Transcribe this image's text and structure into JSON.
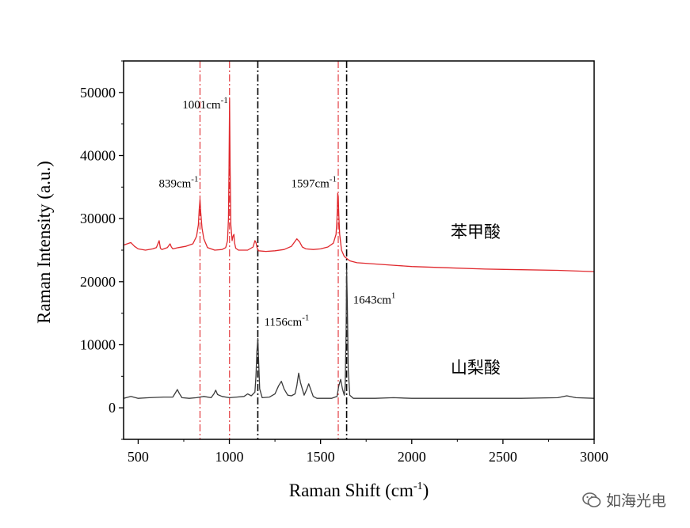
{
  "chart_data": {
    "type": "line",
    "xlabel_main": "Raman Shift (cm",
    "xlabel_sup": "-1",
    "xlabel_end": ")",
    "ylabel": "Raman Intensity (a.u.)",
    "xlim": [
      420,
      3000
    ],
    "ylim": [
      -5000,
      55000
    ],
    "xticks": [
      500,
      1000,
      1500,
      2000,
      2500,
      3000
    ],
    "yticks": [
      0,
      10000,
      20000,
      30000,
      40000,
      50000
    ],
    "series": [
      {
        "name": "苯甲酸",
        "color": "#e0282d",
        "x": [
          420,
          440,
          460,
          480,
          500,
          540,
          580,
          600,
          615,
          622,
          630,
          660,
          675,
          682,
          690,
          720,
          760,
          800,
          820,
          830,
          835,
          839,
          843,
          850,
          860,
          880,
          920,
          960,
          980,
          990,
          995,
          998,
          1001,
          1004,
          1008,
          1015,
          1020,
          1025,
          1028,
          1035,
          1050,
          1080,
          1100,
          1130,
          1140,
          1146,
          1152,
          1160,
          1200,
          1250,
          1300,
          1340,
          1370,
          1385,
          1400,
          1420,
          1460,
          1500,
          1540,
          1570,
          1585,
          1590,
          1594,
          1597,
          1600,
          1605,
          1615,
          1630,
          1660,
          1700,
          1800,
          1900,
          2000,
          2200,
          2400,
          2600,
          2800,
          3000
        ],
        "y": [
          25800,
          26000,
          26200,
          25600,
          25200,
          25000,
          25200,
          25400,
          26500,
          25300,
          25100,
          25400,
          26000,
          25500,
          25200,
          25400,
          25600,
          26000,
          27200,
          29000,
          31500,
          33000,
          31000,
          28500,
          26800,
          25400,
          25000,
          25100,
          25400,
          26500,
          30000,
          38000,
          49000,
          38000,
          29000,
          26500,
          27200,
          27500,
          26200,
          25300,
          25000,
          25000,
          25000,
          25500,
          26500,
          26200,
          25400,
          24900,
          24800,
          24900,
          25100,
          25600,
          26800,
          26300,
          25500,
          25200,
          25100,
          25200,
          25500,
          26100,
          27500,
          30000,
          34000,
          33500,
          30500,
          27500,
          25000,
          24000,
          23300,
          23000,
          22800,
          22600,
          22400,
          22200,
          22000,
          21900,
          21800,
          21600
        ]
      },
      {
        "name": "山梨酸",
        "color": "#3a3a3a",
        "x": [
          420,
          460,
          500,
          560,
          640,
          690,
          705,
          715,
          725,
          740,
          780,
          820,
          860,
          900,
          915,
          925,
          935,
          960,
          1000,
          1040,
          1080,
          1100,
          1120,
          1140,
          1146,
          1151,
          1156,
          1161,
          1166,
          1180,
          1220,
          1250,
          1270,
          1285,
          1300,
          1320,
          1340,
          1360,
          1370,
          1380,
          1390,
          1410,
          1425,
          1435,
          1445,
          1460,
          1480,
          1520,
          1560,
          1590,
          1600,
          1610,
          1620,
          1630,
          1635,
          1640,
          1643,
          1647,
          1652,
          1660,
          1680,
          1720,
          1800,
          1900,
          2000,
          2200,
          2400,
          2600,
          2800,
          2850,
          2900,
          3000
        ],
        "y": [
          1500,
          1800,
          1500,
          1600,
          1700,
          1700,
          2400,
          2900,
          2300,
          1600,
          1500,
          1600,
          1800,
          1600,
          2200,
          2800,
          2100,
          1800,
          1600,
          1700,
          1800,
          2200,
          1900,
          2500,
          5000,
          9000,
          11000,
          7000,
          3000,
          1600,
          1700,
          2200,
          3500,
          4200,
          3000,
          2000,
          1900,
          2200,
          3500,
          5500,
          4000,
          2000,
          3000,
          3800,
          3000,
          1800,
          1500,
          1500,
          1500,
          1800,
          3500,
          4500,
          3000,
          2000,
          3500,
          12000,
          22000,
          16000,
          6000,
          2000,
          1500,
          1500,
          1500,
          1600,
          1500,
          1500,
          1500,
          1500,
          1600,
          1900,
          1600,
          1500
        ]
      }
    ],
    "reference_lines": [
      {
        "x": 839,
        "color": "#e0282d",
        "style": "dashdot"
      },
      {
        "x": 1001,
        "color": "#e0282d",
        "style": "dashdot"
      },
      {
        "x": 1156,
        "color": "#000000",
        "style": "dashdot"
      },
      {
        "x": 1597,
        "color": "#e0282d",
        "style": "dashdot"
      },
      {
        "x": 1643,
        "color": "#000000",
        "style": "dashdot"
      }
    ],
    "annotations": [
      {
        "text": "839cm",
        "sup": "-1",
        "x": 839,
        "y": 35000,
        "anchor": "end"
      },
      {
        "text": "1001cm",
        "sup": "-1",
        "x": 1001,
        "y": 47500,
        "anchor": "end"
      },
      {
        "text": "1597cm",
        "sup": "-1",
        "x": 1597,
        "y": 35000,
        "anchor": "end"
      },
      {
        "text": "1156cm",
        "sup": "-1",
        "x": 1156,
        "y": 13000,
        "anchor": "start"
      },
      {
        "text": "1643cm",
        "sup": "1",
        "x": 1643,
        "y": 16500,
        "anchor": "start"
      }
    ],
    "series_labels": [
      {
        "text": "苯甲酸",
        "x": 2350,
        "y": 27000
      },
      {
        "text": "山梨酸",
        "x": 2350,
        "y": 5500
      }
    ]
  },
  "watermark": {
    "icon": "wechat-icon",
    "text": "如海光电"
  }
}
